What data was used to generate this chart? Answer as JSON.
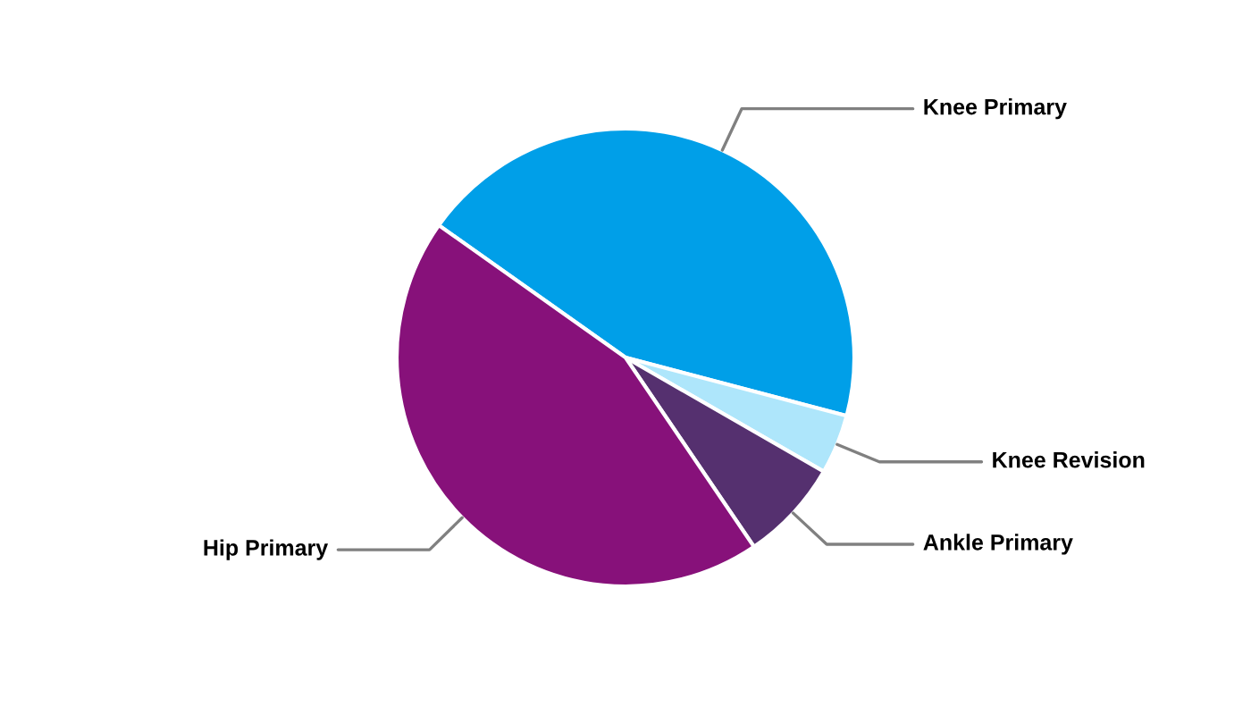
{
  "chart_data": {
    "type": "pie",
    "categories": [
      "Knee Primary",
      "Knee Revision",
      "Ankle Primary",
      "Hip Primary"
    ],
    "values": [
      44.3,
      4.2,
      7.2,
      44.3
    ],
    "colors": [
      "#009fe8",
      "#aee6fb",
      "#55306f",
      "#87117a"
    ]
  }
}
